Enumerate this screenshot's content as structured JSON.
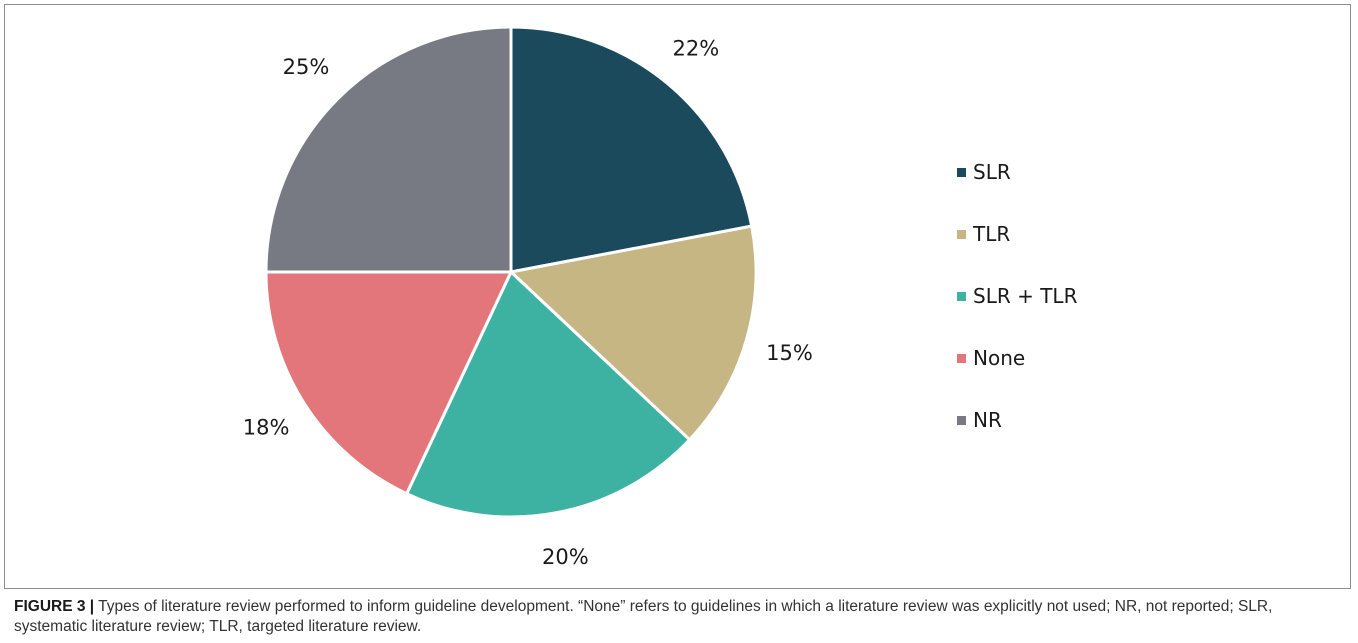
{
  "chart_data": {
    "type": "pie",
    "slices": [
      {
        "name": "SLR",
        "value": 22,
        "label": "22%",
        "color": "#1a4a5c"
      },
      {
        "name": "TLR",
        "value": 15,
        "label": "15%",
        "color": "#c5b683"
      },
      {
        "name": "SLR + TLR",
        "value": 20,
        "label": "20%",
        "color": "#3db2a2"
      },
      {
        "name": "None",
        "value": 18,
        "label": "18%",
        "color": "#e2767b"
      },
      {
        "name": "NR",
        "value": 25,
        "label": "25%",
        "color": "#777a82"
      }
    ],
    "start": "12 o'clock",
    "direction": "clockwise",
    "legend_position": "right"
  },
  "caption": {
    "label": "FIGURE 3 |",
    "text": "Types of literature review performed to inform guideline development. “None” refers to guidelines in which a literature review was explicitly not used; NR, not reported; SLR, systematic literature review; TLR, targeted literature review."
  }
}
